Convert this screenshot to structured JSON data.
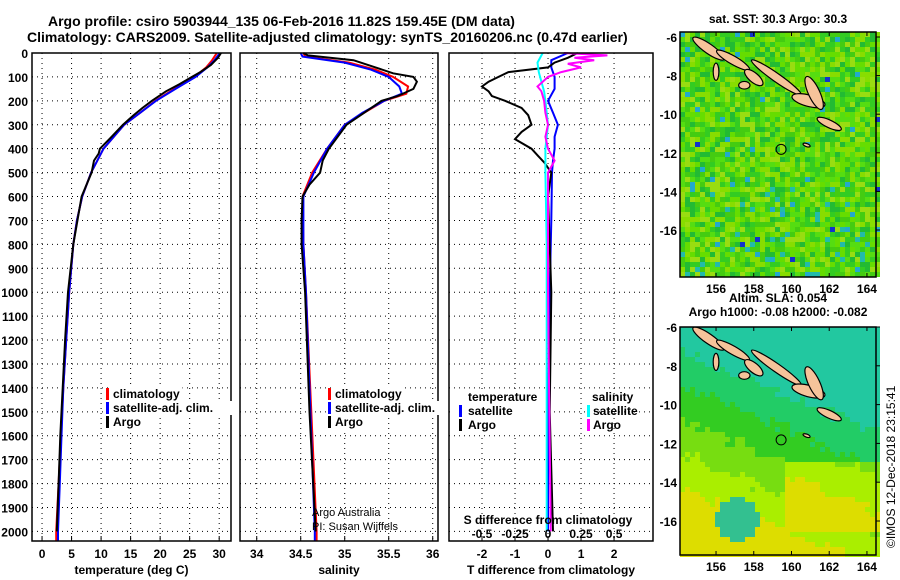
{
  "header": {
    "title_line1": "Argo profile: csiro 5903944_135 06-Feb-2016 11.82S 159.45E (DM data)",
    "title_line2": "Climatology: CARS2009. Satellite-adjusted climatology: synTS_20160206.nc (0.47d earlier)"
  },
  "colors": {
    "climatology": "#ff0000",
    "satellite": "#0000ff",
    "argo": "#000000",
    "sat_salinity": "#00ffff",
    "argo_salinity": "#ff00ff",
    "land": "#f6c39a"
  },
  "chart_data": [
    {
      "type": "line",
      "title": "",
      "xlabel": "temperature (deg C)",
      "ylabel": "",
      "xlim": [
        -1.7,
        32
      ],
      "ylim": [
        2040,
        0
      ],
      "xticks": [
        0,
        5,
        10,
        15,
        20,
        25,
        30
      ],
      "yticks": [
        0,
        100,
        200,
        300,
        400,
        500,
        600,
        700,
        800,
        900,
        1000,
        1100,
        1200,
        1300,
        1400,
        1500,
        1600,
        1700,
        1800,
        1900,
        2000
      ],
      "grid": true,
      "legend": {
        "placement": "lower-center",
        "entries": [
          "climatology",
          "satellite-adj. clim.",
          "Argo"
        ]
      },
      "series": [
        {
          "name": "climatology",
          "depth": [
            0,
            30,
            60,
            100,
            150,
            200,
            250,
            300,
            400,
            500,
            600,
            700,
            800,
            1000,
            1200,
            1400,
            1600,
            1800,
            2000,
            2040
          ],
          "values": [
            29.6,
            28.8,
            27.8,
            25.8,
            22.4,
            19.2,
            16.6,
            13.9,
            10.4,
            8.3,
            6.8,
            5.9,
            5.3,
            4.6,
            4.1,
            3.6,
            3.2,
            2.8,
            2.4,
            2.4
          ]
        },
        {
          "name": "satellite-adj. clim.",
          "depth": [
            0,
            30,
            60,
            100,
            150,
            200,
            250,
            300,
            400,
            500,
            600,
            700,
            800,
            1000,
            1200,
            1400,
            1600,
            1800,
            2000,
            2040
          ],
          "values": [
            30.1,
            29.2,
            28.0,
            26.0,
            22.6,
            19.3,
            16.6,
            13.9,
            10.4,
            8.3,
            6.8,
            5.9,
            5.3,
            4.6,
            4.1,
            3.6,
            3.3,
            3.0,
            2.7,
            2.7
          ]
        },
        {
          "name": "Argo",
          "depth": [
            0,
            20,
            50,
            80,
            100,
            130,
            160,
            200,
            230,
            260,
            300,
            350,
            400,
            420,
            450,
            500,
            600,
            800,
            1000,
            1200,
            1400,
            1600,
            1800,
            2000
          ],
          "values": [
            30.3,
            29.8,
            28.6,
            26.8,
            25.4,
            23.3,
            21.0,
            18.6,
            17.0,
            15.5,
            13.7,
            11.8,
            9.8,
            9.6,
            8.8,
            8.4,
            6.7,
            5.3,
            4.4,
            3.9,
            3.5,
            3.1,
            2.8,
            2.5
          ]
        }
      ]
    },
    {
      "type": "line",
      "title": "",
      "xlabel": "salinity",
      "ylabel": "",
      "xlim": [
        33.81,
        36.06
      ],
      "ylim": [
        2040,
        0
      ],
      "xticks": [
        34,
        34.5,
        35,
        35.5,
        36
      ],
      "xtick_labels": [
        "34",
        "34.5",
        "35",
        "35.5",
        "36"
      ],
      "grid": true,
      "legend": {
        "placement": "lower-center",
        "entries": [
          "climatology",
          "satellite-adj. clim.",
          "Argo"
        ]
      },
      "annotation": [
        "Argo Australia",
        "PI: Susan Wijffels"
      ],
      "series": [
        {
          "name": "climatology",
          "depth": [
            0,
            15,
            40,
            70,
            100,
            140,
            170,
            200,
            250,
            300,
            400,
            500,
            600,
            800,
            1000,
            1500,
            2000,
            2040
          ],
          "values": [
            34.53,
            34.55,
            35.05,
            35.35,
            35.55,
            35.72,
            35.7,
            35.45,
            35.22,
            35.0,
            34.8,
            34.63,
            34.52,
            34.53,
            34.56,
            34.62,
            34.68,
            34.68
          ]
        },
        {
          "name": "satellite-adj. clim.",
          "depth": [
            0,
            15,
            40,
            70,
            100,
            140,
            170,
            200,
            250,
            300,
            400,
            500,
            600,
            800,
            1000,
            1500,
            2000,
            2040
          ],
          "values": [
            34.5,
            34.52,
            35.0,
            35.3,
            35.5,
            35.62,
            35.65,
            35.45,
            35.2,
            35.0,
            34.8,
            34.65,
            34.53,
            34.53,
            34.56,
            34.61,
            34.66,
            34.66
          ]
        },
        {
          "name": "Argo",
          "depth": [
            0,
            10,
            30,
            60,
            85,
            100,
            120,
            150,
            180,
            200,
            250,
            300,
            400,
            450,
            500,
            550,
            600,
            700,
            800,
            1000,
            1500,
            2000
          ],
          "values": [
            34.53,
            34.58,
            35.1,
            35.35,
            35.55,
            35.78,
            35.82,
            35.78,
            35.6,
            35.42,
            35.22,
            35.02,
            34.82,
            34.75,
            34.72,
            34.6,
            34.52,
            34.51,
            34.51,
            34.55,
            34.6,
            34.67
          ]
        }
      ]
    },
    {
      "type": "line",
      "title": "",
      "xlabel": "T difference from climatology",
      "xlabel_top": "S difference from climatology",
      "xlim": [
        -3,
        3.18
      ],
      "xlim_s": [
        -0.75,
        0.795
      ],
      "ylim": [
        2040,
        0
      ],
      "xticks": [
        -2,
        -1,
        0,
        1,
        2
      ],
      "xticks_s": [
        -0.5,
        -0.25,
        0,
        0.25,
        0.5
      ],
      "xtick_labels_s": [
        "-0.5",
        "-0.25",
        "0",
        "0.25",
        "0.5"
      ],
      "grid": true,
      "legend": {
        "placement": "lower",
        "temperature_heading": "temperature",
        "salinity_heading": "salinity",
        "entries_t": [
          "satellite",
          "Argo"
        ],
        "entries_s": [
          "satellite",
          "Argo"
        ]
      },
      "series": [
        {
          "name": "temperature satellite",
          "axis": "T",
          "depth": [
            0,
            30,
            60,
            100,
            150,
            200,
            250,
            300,
            350,
            400,
            450,
            500,
            700,
            1000,
            1500,
            2000
          ],
          "values": [
            0.6,
            0.1,
            0.1,
            0.2,
            0.2,
            0.0,
            0.15,
            0.3,
            0.2,
            0.2,
            0.15,
            0.12,
            0.1,
            0.05,
            0.0,
            0.0
          ]
        },
        {
          "name": "temperature Argo",
          "axis": "T",
          "depth": [
            0,
            20,
            40,
            60,
            80,
            100,
            120,
            140,
            160,
            180,
            200,
            230,
            260,
            300,
            330,
            360,
            400,
            430,
            460,
            500,
            600,
            800,
            1000,
            1500,
            2000
          ],
          "values": [
            0.9,
            0.6,
            0.2,
            0.0,
            -1.2,
            -1.5,
            -1.8,
            -2.0,
            -1.8,
            -1.7,
            -1.3,
            -0.8,
            -0.6,
            -0.5,
            -0.8,
            -1.0,
            -0.5,
            -0.3,
            -0.1,
            0.1,
            0.0,
            0.05,
            0.1,
            0.05,
            0.15
          ]
        },
        {
          "name": "salinity satellite",
          "axis": "S",
          "depth": [
            0,
            40,
            80,
            120,
            160,
            200,
            300,
            400,
            500,
            800,
            1000,
            1500,
            2000
          ],
          "values": [
            -0.04,
            -0.08,
            -0.07,
            -0.05,
            -0.03,
            -0.02,
            0.0,
            -0.02,
            -0.02,
            -0.01,
            -0.01,
            -0.01,
            -0.01
          ]
        },
        {
          "name": "salinity Argo",
          "axis": "S",
          "depth": [
            0,
            10,
            20,
            30,
            45,
            60,
            80,
            100,
            120,
            140,
            160,
            200,
            250,
            300,
            350,
            400,
            450,
            500,
            600,
            1000,
            2000
          ],
          "values": [
            0.12,
            0.45,
            0.2,
            0.35,
            0.15,
            0.25,
            0.1,
            0.0,
            -0.04,
            -0.08,
            -0.05,
            -0.03,
            -0.02,
            0.0,
            -0.02,
            0.0,
            0.05,
            0.0,
            0.0,
            0.0,
            0.02
          ]
        }
      ]
    }
  ],
  "maps": {
    "sst": {
      "title": "sat. SST: 30.3 Argo: 30.3",
      "sst_value": 30.3,
      "argo_value": 30.3
    },
    "sla": {
      "title_line1": "Altim. SLA: 0.054",
      "title_line2": "Argo h1000: -0.08 h2000: -0.082"
    },
    "lon_ticks": [
      156,
      158,
      160,
      162,
      164
    ],
    "lat_ticks": [
      -6,
      -8,
      -10,
      -12,
      -14,
      -16
    ],
    "argo_position": {
      "lon": 159.45,
      "lat": -11.82
    }
  },
  "footer": {
    "copyright": "©IMOS 12-Dec-2018 23:15:41"
  }
}
